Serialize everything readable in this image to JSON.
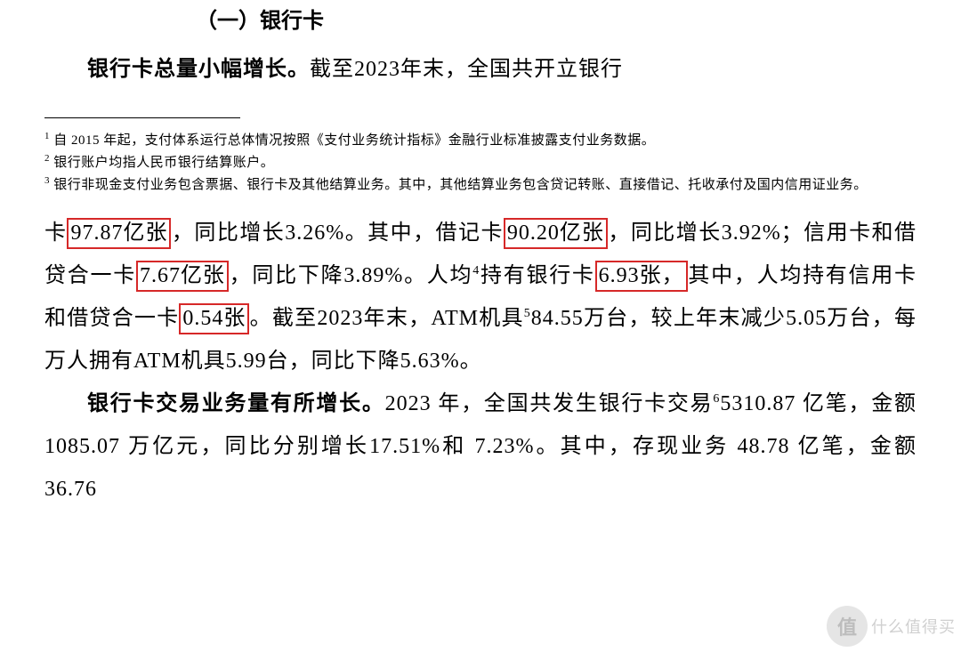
{
  "heading": "（一）银行卡",
  "intro_bold": "银行卡总量小幅增长。",
  "intro_rest": "截至2023年末，全国共开立银行",
  "footnotes": {
    "f1": "自 2015 年起，支付体系运行总体情况按照《支付业务统计指标》金融行业标准披露支付业务数据。",
    "f2": "银行账户均指人民币银行结算账户。",
    "f3": "银行非现金支付业务包含票据、银行卡及其他结算业务。其中，其他结算业务包含贷记转账、直接借记、托收承付及国内信用证业务。"
  },
  "body": {
    "s1a": "卡",
    "hl1": "97.87亿张",
    "s1b": "，同比增长3.26%。其中，借记卡",
    "hl2": "90.20亿张",
    "s1c": "，同比增长3.92%；信用卡和借贷合一卡",
    "hl3": "7.67亿张",
    "s1d": "，同比下降3.89%。人均",
    "sup4": "4",
    "s1e": "持有银行卡",
    "hl4": "6.93张，",
    "s1f": "其中，人均持有信用卡和借贷合一卡",
    "hl5": "0.54张",
    "s1g": "。截至2023年末，ATM机具",
    "sup5": "5",
    "s1h": "84.55万台，较上年末减少5.05万台，每万人拥有ATM机具5.99台，同比下降5.63%。"
  },
  "para2": {
    "bold": "银行卡交易业务量有所增长。",
    "t1": "2023 年，全国共发生银行卡交易",
    "sup6": "6",
    "t2": "5310.87 亿笔，金额 1085.07 万亿元，同比分别增长17.51%和 7.23%。其中，存现业务 48.78 亿笔，金额 36.76"
  },
  "watermark": {
    "symbol": "值",
    "text": "什么值得买"
  },
  "colors": {
    "highlight_border": "#d62828",
    "text": "#000000",
    "bg": "#ffffff"
  }
}
